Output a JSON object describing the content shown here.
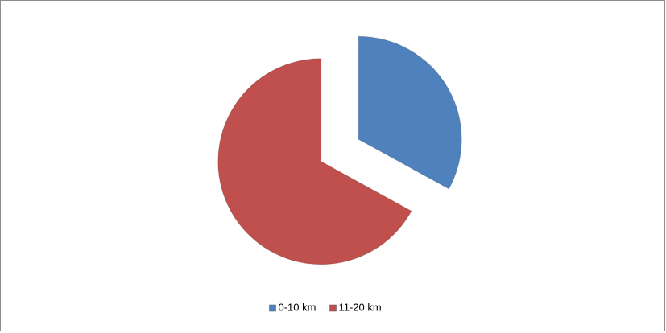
{
  "chart_data": {
    "type": "pie",
    "categories": [
      "0-10 km",
      "11-20 km"
    ],
    "values": [
      33,
      67
    ],
    "colors": [
      "#4f81bd",
      "#c0504d"
    ],
    "exploded": true,
    "legend": "bottom"
  }
}
